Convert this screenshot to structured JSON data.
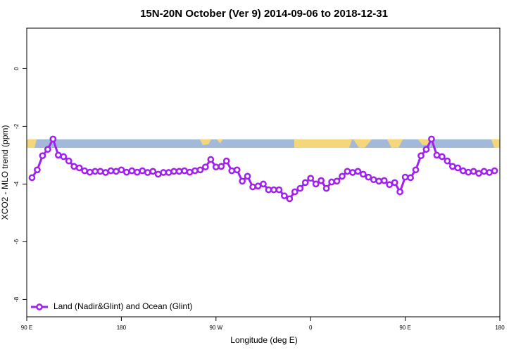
{
  "chart_data": {
    "type": "line",
    "title": "15N-20N October (Ver 9)   2014-09-06 to 2018-12-31",
    "x_label": "Longitude (deg E)",
    "y_label": "XCO2 - MLO trend (ppm)",
    "x": [
      95,
      100,
      105,
      110,
      115,
      120,
      125,
      130,
      135,
      140,
      145,
      150,
      155,
      160,
      165,
      170,
      175,
      180,
      185,
      190,
      195,
      200,
      205,
      210,
      215,
      220,
      225,
      230,
      235,
      240,
      245,
      250,
      255,
      260,
      265,
      270,
      275,
      280,
      285,
      290,
      295,
      300,
      305,
      310,
      315,
      320,
      325,
      330,
      335,
      340,
      345,
      350,
      355,
      360,
      365,
      370,
      375,
      380,
      385,
      390,
      395,
      400,
      405,
      410,
      415,
      420,
      425,
      430,
      435,
      440,
      445,
      450,
      455,
      460,
      465,
      470,
      475,
      480,
      485,
      490,
      495,
      500,
      505,
      510,
      515,
      520,
      525,
      530,
      535
    ],
    "series": [
      {
        "name": "Land (Nadir&Glint) and Ocean (Glint)",
        "color": "#a020f0",
        "values": [
          -3.78,
          -3.51,
          -3.02,
          -2.8,
          -2.44,
          -3.0,
          -3.05,
          -3.2,
          -3.39,
          -3.44,
          -3.54,
          -3.59,
          -3.56,
          -3.56,
          -3.6,
          -3.54,
          -3.56,
          -3.51,
          -3.59,
          -3.54,
          -3.59,
          -3.54,
          -3.6,
          -3.56,
          -3.66,
          -3.6,
          -3.6,
          -3.56,
          -3.56,
          -3.54,
          -3.59,
          -3.54,
          -3.51,
          -3.41,
          -3.15,
          -3.41,
          -3.39,
          -3.2,
          -3.54,
          -3.51,
          -3.9,
          -3.73,
          -4.1,
          -4.07,
          -4.0,
          -4.2,
          -4.2,
          -4.2,
          -4.41,
          -4.51,
          -4.27,
          -4.15,
          -3.95,
          -3.8,
          -4.0,
          -3.88,
          -4.15,
          -3.93,
          -3.9,
          -3.73,
          -3.56,
          -3.6,
          -3.56,
          -3.66,
          -3.76,
          -3.85,
          -3.9,
          -3.88,
          -4.02,
          -3.95,
          -4.27,
          -3.76,
          -3.78,
          -3.51,
          -3.02,
          -2.8,
          -2.44,
          -3.0,
          -3.05,
          -3.2,
          -3.39,
          -3.44,
          -3.54,
          -3.59,
          -3.56,
          -3.63,
          -3.56,
          -3.6,
          -3.54
        ]
      }
    ],
    "xlim": [
      90,
      540
    ],
    "xticks": [
      {
        "value": 90,
        "label": "90 E"
      },
      180,
      {
        "value": 270,
        "label": "90 W"
      },
      {
        "value": 360,
        "label": "0"
      },
      {
        "value": 450,
        "label": "90 E"
      },
      {
        "value": 540,
        "label": "180"
      }
    ],
    "ylim": [
      -8.6,
      1.4
    ],
    "yticks": [
      0,
      -2,
      -4,
      -6,
      -8
    ],
    "legend": "bottom-left"
  }
}
